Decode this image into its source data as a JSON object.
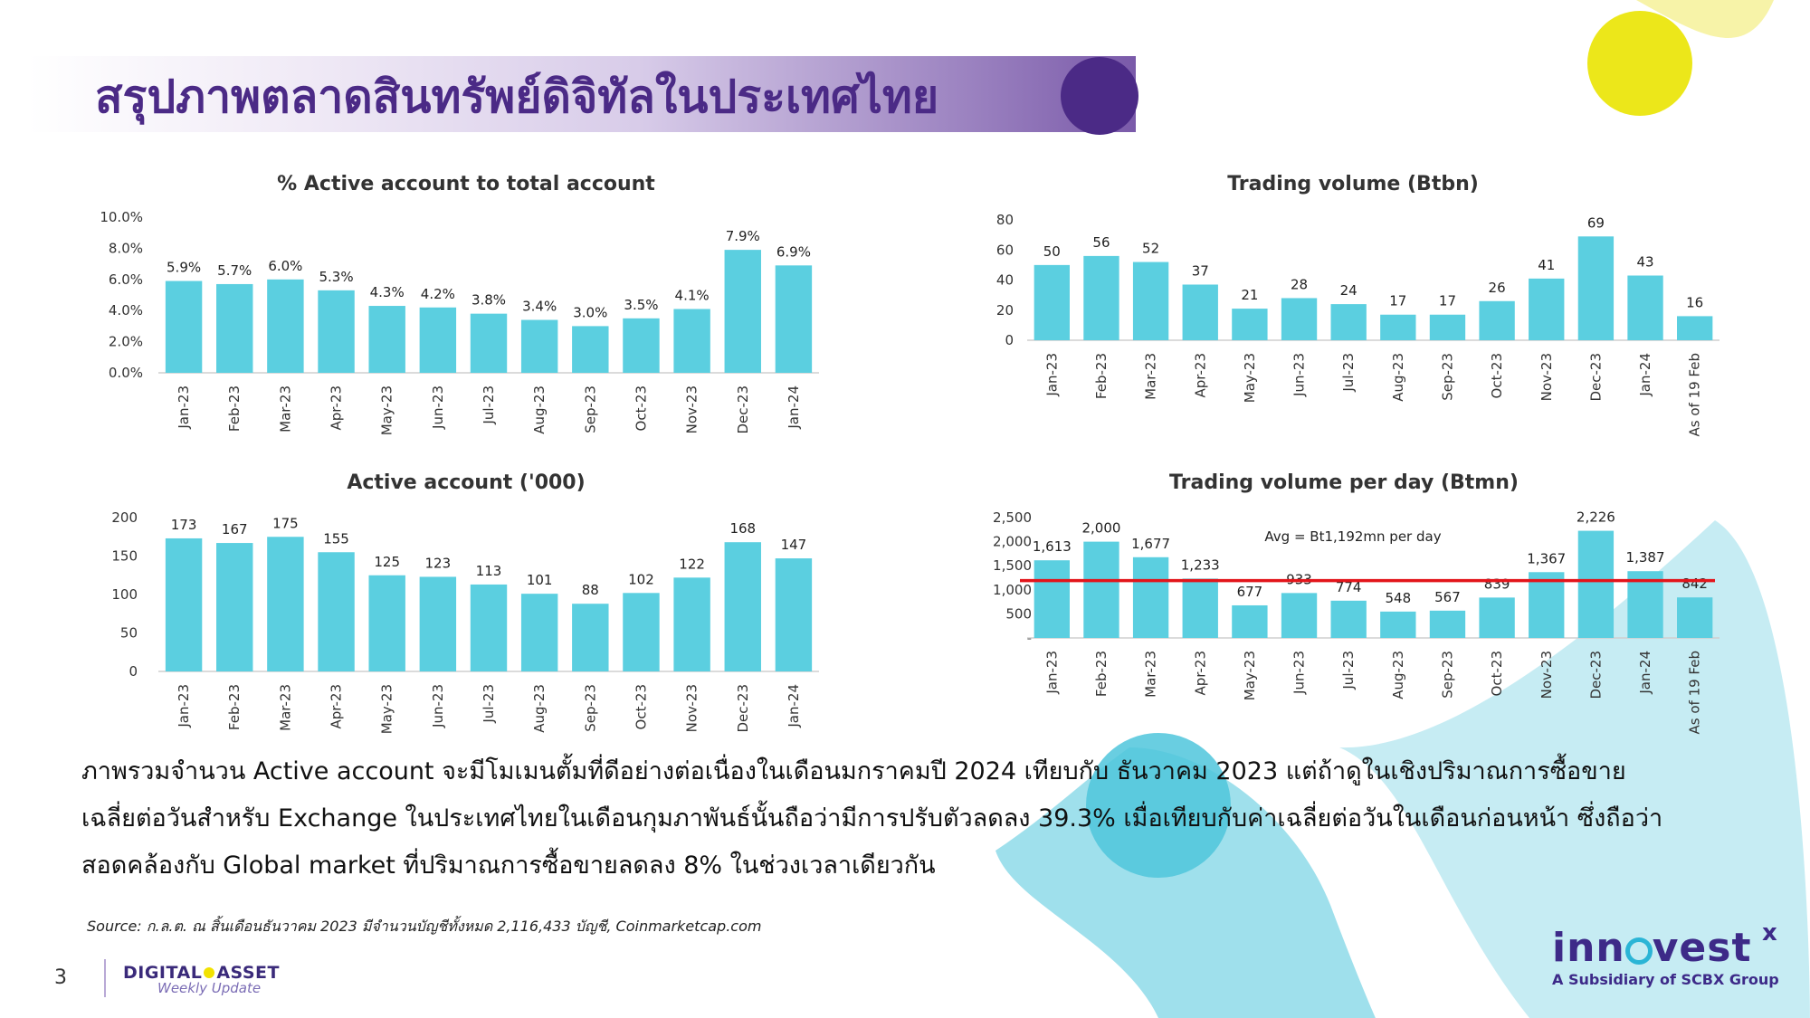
{
  "page": {
    "title": "สรุปภาพตลาดสินทรัพย์ดิจิทัลในประเทศไทย",
    "page_number": "3",
    "summary_lines": [
      "ภาพรวมจำนวน Active account จะมีโมเมนตั้มที่ดีอย่างต่อเนื่องในเดือนมกราคมปี 2024 เทียบกับ ธันวาคม 2023 แต่ถ้าดูในเชิงปริมาณการซื้อขาย",
      "เฉลี่ยต่อวันสำหรับ Exchange ในประเทศไทยในเดือนกุมภาพันธ์นั้นถือว่ามีการปรับตัวลดลง  39.3% เมื่อเทียบกับค่าเฉลี่ยต่อวันในเดือนก่อนหน้า ซึ่งถือว่า",
      "สอดคล้องกับ Global market ที่ปริมาณการซื้อขายลดลง 8% ในช่วงเวลาเดียวกัน"
    ],
    "source": "Source: ก.ล.ต. ณ สิ้นเดือนธันวาคม 2023 มีจำนวนบัญชีทั้งหมด 2,116,433 บัญชี, Coinmarketcap.com",
    "footer_brand": {
      "line1_left": "DIGITAL",
      "line1_right": "ASSET",
      "line2": "Weekly Update"
    },
    "logo": {
      "word_left": "inn",
      "word_right": "vest",
      "superscript": "x",
      "subtitle": "A Subsidiary of SCBX Group"
    }
  },
  "colors": {
    "bar": "#5bcfe0",
    "avg_line": "#e3151b",
    "title": "#4b2a86",
    "yellow": "#f2e200",
    "teal_deco": "#66cfe0"
  },
  "chart_data": [
    {
      "type": "bar",
      "title": "% Active account to total account",
      "categories": [
        "Jan-23",
        "Feb-23",
        "Mar-23",
        "Apr-23",
        "May-23",
        "Jun-23",
        "Jul-23",
        "Aug-23",
        "Sep-23",
        "Oct-23",
        "Nov-23",
        "Dec-23",
        "Jan-24"
      ],
      "values": [
        5.9,
        5.7,
        6.0,
        5.3,
        4.3,
        4.2,
        3.8,
        3.4,
        3.0,
        3.5,
        4.1,
        7.9,
        6.9
      ],
      "value_labels": [
        "5.9%",
        "5.7%",
        "6.0%",
        "5.3%",
        "4.3%",
        "4.2%",
        "3.8%",
        "3.4%",
        "3.0%",
        "3.5%",
        "4.1%",
        "7.9%",
        "6.9%"
      ],
      "y_ticks": [
        "0.0%",
        "2.0%",
        "4.0%",
        "6.0%",
        "8.0%",
        "10.0%"
      ],
      "ylim": [
        0,
        10
      ],
      "grid": false
    },
    {
      "type": "bar",
      "title": "Trading volume (Btbn)",
      "categories": [
        "Jan-23",
        "Feb-23",
        "Mar-23",
        "Apr-23",
        "May-23",
        "Jun-23",
        "Jul-23",
        "Aug-23",
        "Sep-23",
        "Oct-23",
        "Nov-23",
        "Dec-23",
        "Jan-24",
        "As of 19 Feb"
      ],
      "values": [
        50,
        56,
        52,
        37,
        21,
        28,
        24,
        17,
        17,
        26,
        41,
        69,
        43,
        16
      ],
      "value_labels": [
        "50",
        "56",
        "52",
        "37",
        "21",
        "28",
        "24",
        "17",
        "17",
        "26",
        "41",
        "69",
        "43",
        "16"
      ],
      "y_ticks": [
        "0",
        "20",
        "40",
        "60",
        "80"
      ],
      "ylim": [
        0,
        80
      ],
      "grid": false
    },
    {
      "type": "bar",
      "title": "Active account ('000)",
      "categories": [
        "Jan-23",
        "Feb-23",
        "Mar-23",
        "Apr-23",
        "May-23",
        "Jun-23",
        "Jul-23",
        "Aug-23",
        "Sep-23",
        "Oct-23",
        "Nov-23",
        "Dec-23",
        "Jan-24"
      ],
      "values": [
        173,
        167,
        175,
        155,
        125,
        123,
        113,
        101,
        88,
        102,
        122,
        168,
        147
      ],
      "value_labels": [
        "173",
        "167",
        "175",
        "155",
        "125",
        "123",
        "113",
        "101",
        "88",
        "102",
        "122",
        "168",
        "147"
      ],
      "y_ticks": [
        "0",
        "50",
        "100",
        "150",
        "200"
      ],
      "ylim": [
        0,
        200
      ],
      "grid": false
    },
    {
      "type": "bar",
      "title": "Trading volume per day (Btmn)",
      "categories": [
        "Jan-23",
        "Feb-23",
        "Mar-23",
        "Apr-23",
        "May-23",
        "Jun-23",
        "Jul-23",
        "Aug-23",
        "Sep-23",
        "Oct-23",
        "Nov-23",
        "Dec-23",
        "Jan-24",
        "As of 19 Feb"
      ],
      "values": [
        1613,
        2000,
        1677,
        1233,
        677,
        933,
        774,
        548,
        567,
        839,
        1367,
        2226,
        1387,
        842
      ],
      "value_labels": [
        "1,613",
        "2,000",
        "1,677",
        "1,233",
        "677",
        "933",
        "774",
        "548",
        "567",
        "839",
        "1,367",
        "2,226",
        "1,387",
        "842"
      ],
      "y_ticks": [
        "-",
        "500",
        "1,000",
        "1,500",
        "2,000",
        "2,500"
      ],
      "ylim": [
        0,
        2500
      ],
      "average": {
        "value": 1192,
        "label": "Avg = Bt1,192mn per day"
      },
      "grid": false
    }
  ]
}
